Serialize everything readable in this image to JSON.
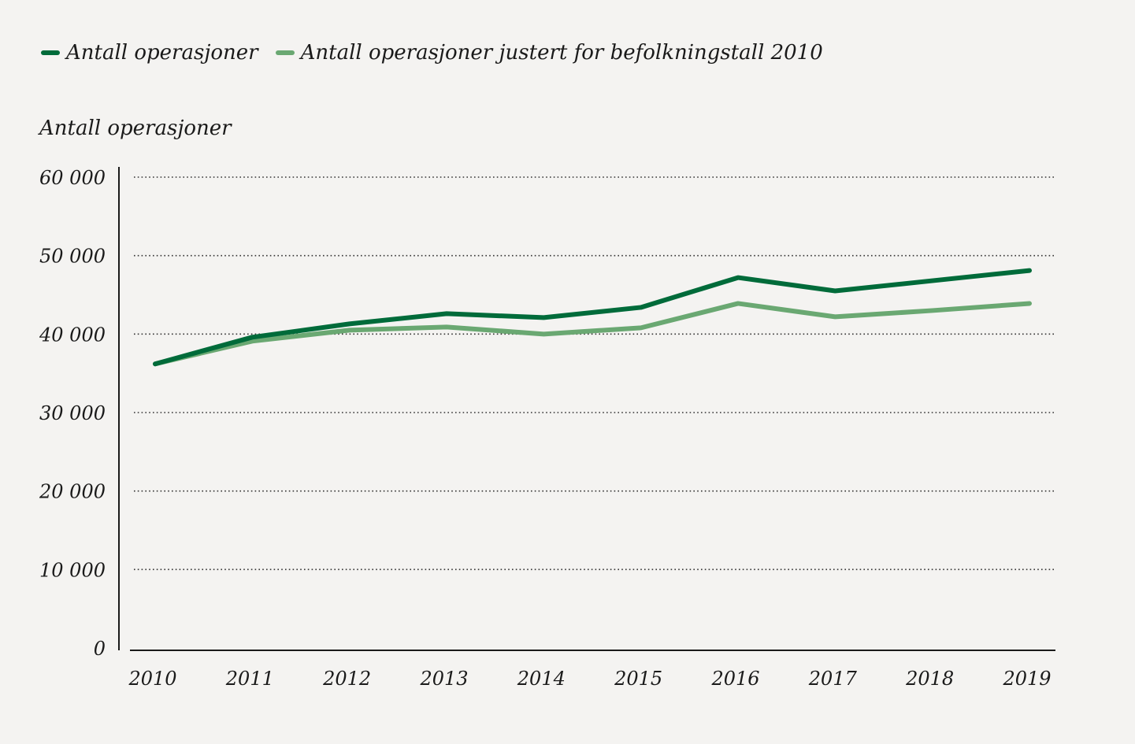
{
  "chart_data": {
    "type": "line",
    "ylabel": "Antall operasjoner",
    "xlabel": "",
    "x": [
      "2010",
      "2011",
      "2012",
      "2013",
      "2014",
      "2015",
      "2016",
      "2017",
      "2018",
      "2019"
    ],
    "ylim": [
      0,
      60000
    ],
    "yticks": [
      0,
      10000,
      20000,
      30000,
      40000,
      50000,
      60000
    ],
    "ytick_labels": [
      "0",
      "10 000",
      "20 000",
      "30 000",
      "40 000",
      "50 000",
      "60 000"
    ],
    "grid": true,
    "legend_position": "top-left",
    "series": [
      {
        "name": "Antall operasjoner",
        "color": "#006b3a",
        "values": [
          36200,
          39600,
          41300,
          42600,
          42100,
          43400,
          47200,
          45500,
          46800,
          48100
        ]
      },
      {
        "name": "Antall operasjoner justert for befolkningstall 2010",
        "color": "#6aa872",
        "values": [
          36200,
          39100,
          40500,
          40900,
          40000,
          40800,
          43900,
          42200,
          43000,
          43900
        ]
      }
    ]
  }
}
